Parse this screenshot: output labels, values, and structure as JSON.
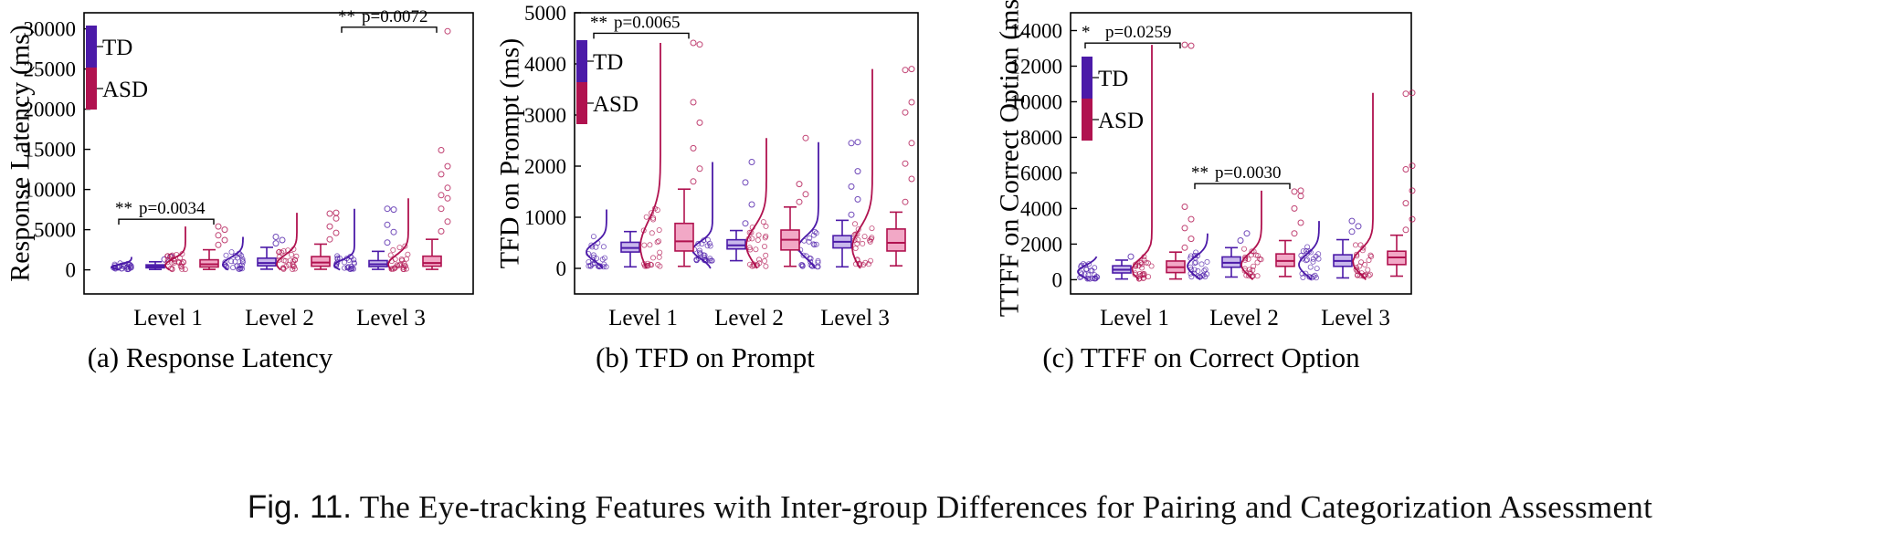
{
  "figure_caption": {
    "prefix": "Fig. 11.",
    "text": "The Eye-tracking Features with Inter-group Differences for Pairing and Categorization Assessment"
  },
  "colors": {
    "td": "#4b1aa8",
    "td_fill": "#c9b8ec",
    "asd": "#b0124f",
    "asd_fill": "#f2a8c6",
    "axis": "#000000"
  },
  "chart_data": [
    {
      "type": "box",
      "caption": "(a) Response Latency",
      "ylabel": "Response Latency (ms)",
      "categories": [
        "Level 1",
        "Level 2",
        "Level 3"
      ],
      "ylim": [
        -3000,
        32000
      ],
      "yticks": [
        0,
        5000,
        10000,
        15000,
        20000,
        25000,
        30000
      ],
      "legend": {
        "placement": "top-left",
        "entries": [
          "TD",
          "ASD"
        ]
      },
      "series": [
        {
          "name": "TD",
          "boxes": [
            {
              "whisker_low": 50,
              "q1": 250,
              "median": 420,
              "q3": 620,
              "whisker_high": 1000,
              "outliers": [
                1300,
                1600
              ]
            },
            {
              "whisker_low": 80,
              "q1": 500,
              "median": 850,
              "q3": 1450,
              "whisker_high": 2800,
              "outliers": [
                3300,
                3700,
                4100
              ]
            },
            {
              "whisker_low": 60,
              "q1": 400,
              "median": 700,
              "q3": 1150,
              "whisker_high": 2300,
              "outliers": [
                3400,
                4700,
                5600,
                7500,
                7600
              ]
            }
          ]
        },
        {
          "name": "ASD",
          "boxes": [
            {
              "whisker_low": 50,
              "q1": 350,
              "median": 700,
              "q3": 1250,
              "whisker_high": 2500,
              "outliers": [
                3100,
                3700,
                4300,
                5000,
                5400
              ]
            },
            {
              "whisker_low": 70,
              "q1": 450,
              "median": 900,
              "q3": 1650,
              "whisker_high": 3200,
              "outliers": [
                3800,
                4600,
                5400,
                6400,
                7000,
                7100
              ]
            },
            {
              "whisker_low": 60,
              "q1": 450,
              "median": 850,
              "q3": 1700,
              "whisker_high": 3800,
              "outliers": [
                4800,
                6000,
                7600,
                8900,
                9300,
                10200,
                11900,
                12900,
                14900,
                29700
              ]
            }
          ]
        }
      ],
      "annotations": [
        {
          "level": "Level 1",
          "stars": "**",
          "text": "p=0.0034",
          "value": 6300
        },
        {
          "level": "Level 3",
          "stars": "**",
          "text": "p=0.0072",
          "value": 30200
        }
      ]
    },
    {
      "type": "box",
      "caption": "(b) TFD on Prompt",
      "ylabel": "TFD on Prompt (ms)",
      "categories": [
        "Level 1",
        "Level 2",
        "Level 3"
      ],
      "ylim": [
        -500,
        5000
      ],
      "yticks": [
        0,
        1000,
        2000,
        3000,
        4000,
        5000
      ],
      "legend": {
        "placement": "top-left",
        "entries": [
          "TD",
          "ASD"
        ]
      },
      "series": [
        {
          "name": "TD",
          "boxes": [
            {
              "whisker_low": 30,
              "q1": 320,
              "median": 400,
              "q3": 510,
              "whisker_high": 720,
              "outliers": []
            },
            {
              "whisker_low": 150,
              "q1": 380,
              "median": 450,
              "q3": 560,
              "whisker_high": 740,
              "outliers": [
                880,
                1250,
                1680,
                2080
              ]
            },
            {
              "whisker_low": 30,
              "q1": 400,
              "median": 520,
              "q3": 640,
              "whisker_high": 940,
              "outliers": [
                1050,
                1350,
                1600,
                1900,
                2450,
                2470
              ]
            }
          ]
        },
        {
          "name": "ASD",
          "boxes": [
            {
              "whisker_low": 40,
              "q1": 340,
              "median": 530,
              "q3": 880,
              "whisker_high": 1550,
              "outliers": [
                1700,
                1950,
                2350,
                2850,
                3250,
                4380,
                4410
              ]
            },
            {
              "whisker_low": 40,
              "q1": 360,
              "median": 560,
              "q3": 750,
              "whisker_high": 1200,
              "outliers": [
                1300,
                1450,
                1650,
                2550
              ]
            },
            {
              "whisker_low": 50,
              "q1": 340,
              "median": 500,
              "q3": 770,
              "whisker_high": 1100,
              "outliers": [
                1300,
                1750,
                2050,
                2450,
                3050,
                3250,
                3880,
                3900
              ]
            }
          ]
        }
      ],
      "annotations": [
        {
          "level": "Level 1",
          "stars": "**",
          "text": "p=0.0065",
          "value": 4600
        }
      ]
    },
    {
      "type": "box",
      "caption": "(c) TTFF on Correct Option",
      "ylabel": "TTFF on Correct Option (ms)",
      "categories": [
        "Level 1",
        "Level 2",
        "Level 3"
      ],
      "ylim": [
        -800,
        15000
      ],
      "yticks": [
        0,
        2000,
        4000,
        6000,
        8000,
        10000,
        12000,
        14000
      ],
      "legend": {
        "placement": "top-left",
        "entries": [
          "TD",
          "ASD"
        ]
      },
      "series": [
        {
          "name": "TD",
          "boxes": [
            {
              "whisker_low": 40,
              "q1": 380,
              "median": 560,
              "q3": 780,
              "whisker_high": 1100,
              "outliers": [
                1300
              ]
            },
            {
              "whisker_low": 150,
              "q1": 700,
              "median": 950,
              "q3": 1280,
              "whisker_high": 1800,
              "outliers": [
                2200,
                2600
              ]
            },
            {
              "whisker_low": 100,
              "q1": 750,
              "median": 1050,
              "q3": 1400,
              "whisker_high": 2250,
              "outliers": [
                2700,
                3000,
                3300
              ]
            }
          ]
        },
        {
          "name": "ASD",
          "boxes": [
            {
              "whisker_low": 40,
              "q1": 400,
              "median": 700,
              "q3": 1050,
              "whisker_high": 1550,
              "outliers": [
                1800,
                2300,
                2900,
                3400,
                4100,
                13150,
                13200
              ]
            },
            {
              "whisker_low": 180,
              "q1": 750,
              "median": 1050,
              "q3": 1450,
              "whisker_high": 2200,
              "outliers": [
                2600,
                3200,
                4000,
                4700,
                4950,
                5000
              ]
            },
            {
              "whisker_low": 200,
              "q1": 850,
              "median": 1250,
              "q3": 1600,
              "whisker_high": 2500,
              "outliers": [
                2800,
                3400,
                4300,
                5000,
                6200,
                6400,
                10450,
                10500
              ]
            }
          ]
        }
      ],
      "annotations": [
        {
          "level": "Level 1",
          "stars": "*",
          "text": "p=0.0259",
          "value": 13300
        },
        {
          "level": "Level 2",
          "stars": "**",
          "text": "p=0.0030",
          "value": 5400
        }
      ]
    }
  ]
}
